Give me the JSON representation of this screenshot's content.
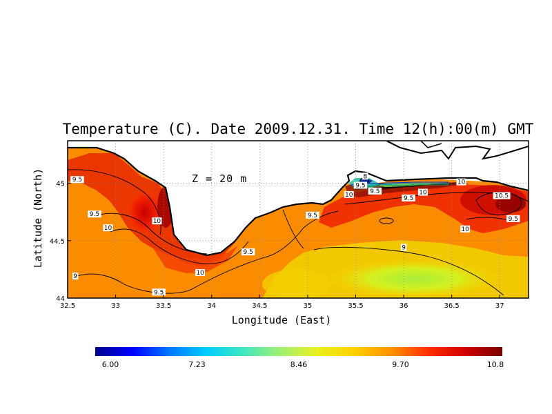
{
  "title": "Temperature (C). Date 2009.12.31. Time 12(h):00(m) GMT",
  "depth_annotation": "Z = 20 m",
  "axes": {
    "xlabel": "Longitude (East)",
    "ylabel": "Latitude (North)",
    "x_range": [
      32.5,
      37.3
    ],
    "y_range": [
      44.0,
      45.37
    ],
    "x_ticks": [
      "32.5",
      "33",
      "33.5",
      "34",
      "34.5",
      "35",
      "35.5",
      "36",
      "36.5",
      "37"
    ],
    "y_ticks": [
      "44",
      "44.5",
      "45"
    ],
    "grid": true
  },
  "colorbar": {
    "min": 6.0,
    "max": 10.8,
    "labels": [
      "6.00",
      "7.23",
      "8.46",
      "9.70",
      "10.8"
    ],
    "colors": [
      "#00008b",
      "#0000ff",
      "#0077ff",
      "#00ccff",
      "#40e8c0",
      "#a0f070",
      "#e8f020",
      "#ffd000",
      "#ff9000",
      "#ff3000",
      "#d00000",
      "#7a0000"
    ]
  },
  "contour_labels": [
    {
      "text": "9.5",
      "lon": 32.6,
      "lat": 45.02
    },
    {
      "text": "9.5",
      "lon": 32.78,
      "lat": 44.72
    },
    {
      "text": "10",
      "lon": 32.92,
      "lat": 44.6
    },
    {
      "text": "10",
      "lon": 33.43,
      "lat": 44.66
    },
    {
      "text": "9",
      "lon": 32.58,
      "lat": 44.18
    },
    {
      "text": "9.5",
      "lon": 33.45,
      "lat": 44.04
    },
    {
      "text": "10",
      "lon": 33.88,
      "lat": 44.21
    },
    {
      "text": "9.5",
      "lon": 34.38,
      "lat": 44.39
    },
    {
      "text": "9.5",
      "lon": 35.05,
      "lat": 44.71
    },
    {
      "text": "10",
      "lon": 35.43,
      "lat": 44.89
    },
    {
      "text": "8",
      "lon": 35.6,
      "lat": 45.05
    },
    {
      "text": "9.5",
      "lon": 35.55,
      "lat": 44.97
    },
    {
      "text": "9.5",
      "lon": 35.7,
      "lat": 44.92
    },
    {
      "text": "9.5",
      "lon": 36.05,
      "lat": 44.86
    },
    {
      "text": "10",
      "lon": 36.2,
      "lat": 44.91
    },
    {
      "text": "10",
      "lon": 36.6,
      "lat": 45.0
    },
    {
      "text": "9",
      "lon": 36.0,
      "lat": 44.43
    },
    {
      "text": "10",
      "lon": 36.64,
      "lat": 44.59
    },
    {
      "text": "10.5",
      "lon": 37.02,
      "lat": 44.88
    },
    {
      "text": "9.5",
      "lon": 37.14,
      "lat": 44.68
    }
  ]
}
